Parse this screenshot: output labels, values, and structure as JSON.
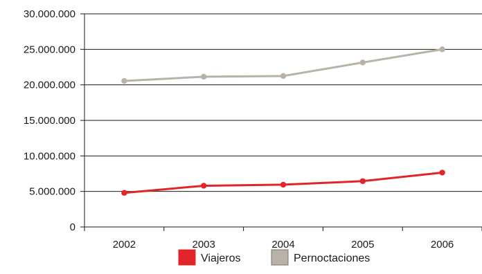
{
  "chart_data": {
    "type": "line",
    "title": "",
    "xlabel": "",
    "ylabel": "",
    "categories": [
      "2002",
      "2003",
      "2004",
      "2005",
      "2006"
    ],
    "ylim": [
      0,
      30000000
    ],
    "y_ticks": [
      0,
      5000000,
      10000000,
      15000000,
      20000000,
      25000000,
      30000000
    ],
    "y_tick_labels": [
      "0",
      "5.000.000",
      "10.000.000",
      "15.000.000",
      "20.000.000",
      "25.000.000",
      "30.000.000"
    ],
    "grid": true,
    "legend_position": "bottom",
    "series": [
      {
        "name": "Viajeros",
        "color": "#e3242b",
        "values": [
          4800000,
          5800000,
          5950000,
          6450000,
          7650000
        ]
      },
      {
        "name": "Pernoctaciones",
        "color": "#b8b2a8",
        "values": [
          20550000,
          21150000,
          21250000,
          23150000,
          25000000
        ]
      }
    ]
  }
}
